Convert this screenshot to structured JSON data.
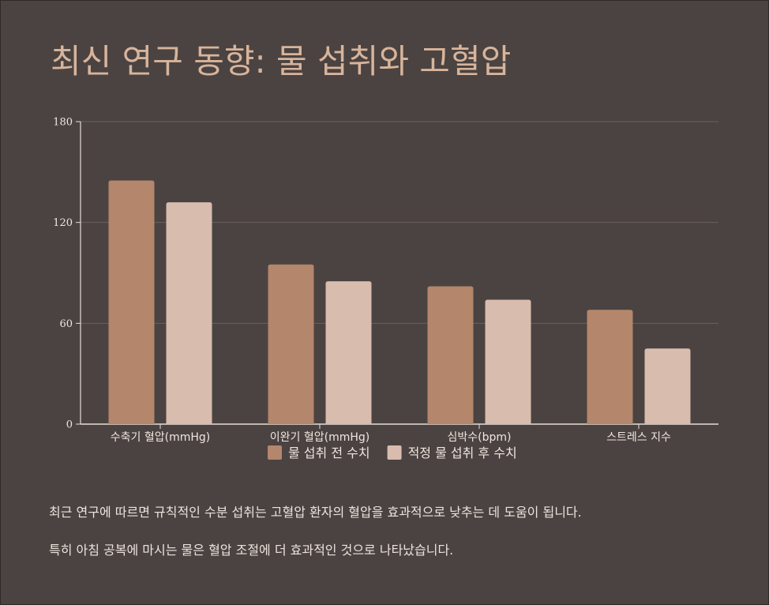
{
  "title": "최신 연구 동향: 물 섭취와 고혈압",
  "chart_data": {
    "type": "bar",
    "categories": [
      "수축기 혈압(mmHg)",
      "이완기 혈압(mmHg)",
      "심박수(bpm)",
      "스트레스 지수"
    ],
    "series": [
      {
        "name": "물 섭취 전 수치",
        "values": [
          145,
          95,
          82,
          68
        ],
        "color": "#b4866c"
      },
      {
        "name": "적정 물 섭취 후 수치",
        "values": [
          132,
          85,
          74,
          45
        ],
        "color": "#d8bcae"
      }
    ],
    "ylim": [
      0,
      180
    ],
    "yticks": [
      0,
      60,
      120,
      180
    ],
    "xlabel": "",
    "ylabel": "",
    "grid": true,
    "legend": "bottom"
  },
  "notes": [
    "최근 연구에 따르면 규칙적인 수분 섭취는 고혈압 환자의 혈압을 효과적으로 낮추는 데 도움이 됩니다.",
    "특히 아침 공복에 마시는 물은 혈압 조절에 더 효과적인 것으로 나타났습니다."
  ],
  "colors": {
    "background": "#4a4341",
    "title": "#d8b49b",
    "grid": "#6a615d",
    "axis": "#e8ddd6"
  }
}
